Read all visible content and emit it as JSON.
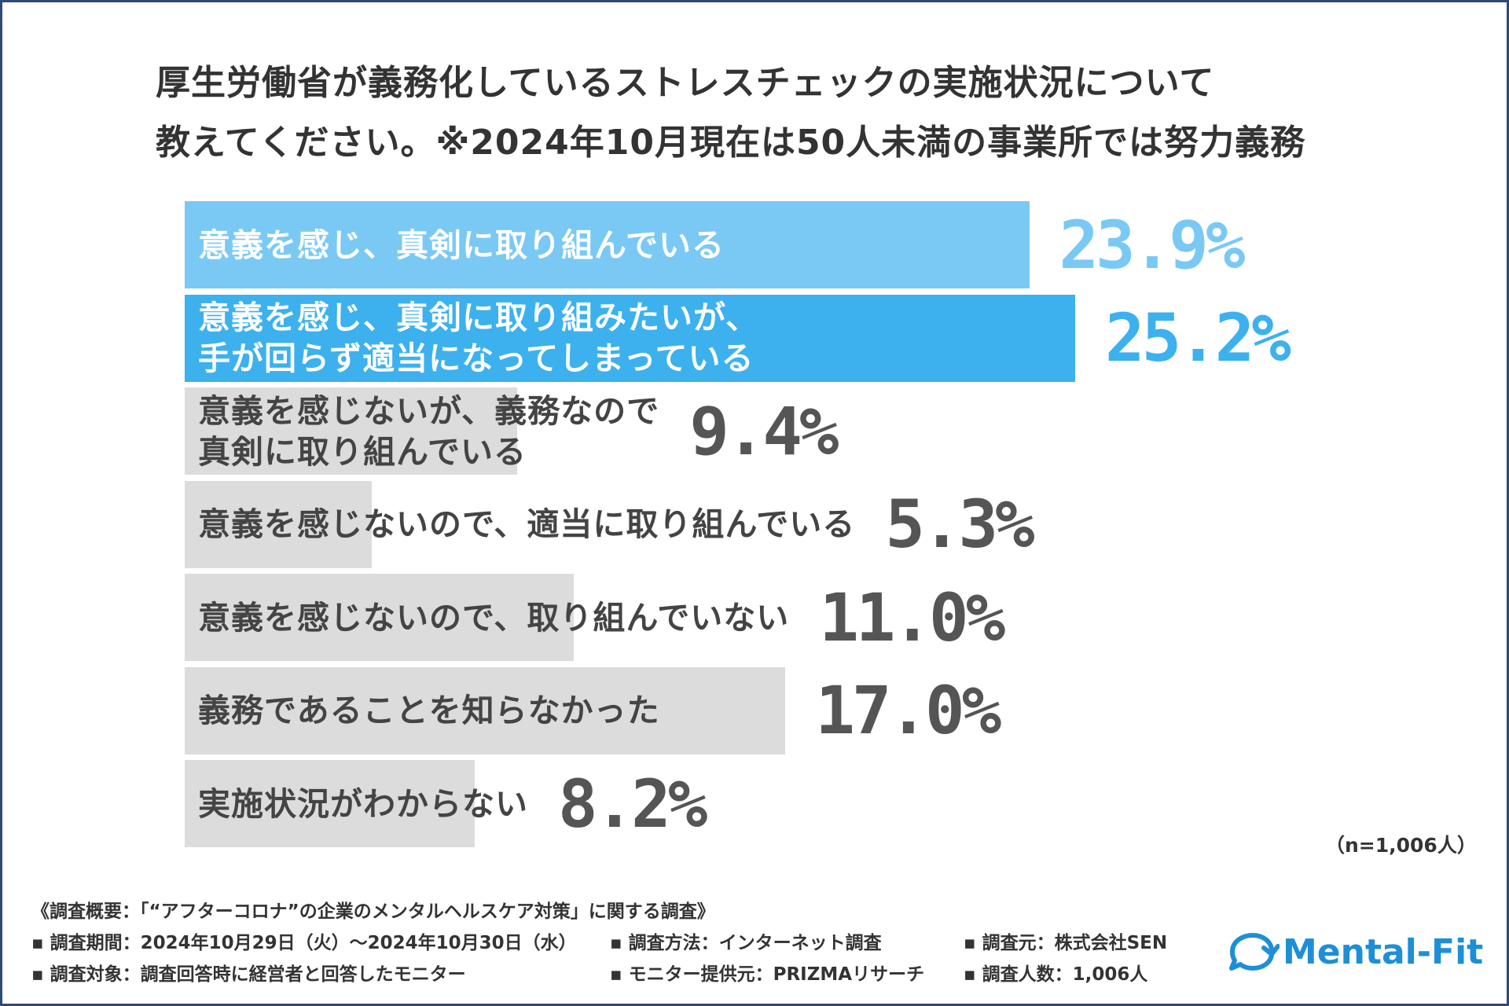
{
  "title": {
    "line1": "厚生労働省が義務化しているストレスチェックの実施状況について",
    "line2": "教えてください。※2024年10月現在は50人未満の事業所では努力義務"
  },
  "chart_data": {
    "type": "bar",
    "orientation": "horizontal",
    "unit": "%",
    "categories": [
      "意義を感じ、真剣に取り組んでいる",
      "意義を感じ、真剣に取り組みたいが、手が回らず適当になってしまっている",
      "意義を感じないが、義務なので真剣に取り組んでいる",
      "意義を感じないので、適当に取り組んでいる",
      "意義を感じないので、取り組んでいない",
      "義務であることを知らなかった",
      "実施状況がわからない"
    ],
    "label_lines": [
      [
        "意義を感じ、真剣に取り組んでいる"
      ],
      [
        "意義を感じ、真剣に取り組みたいが、",
        "手が回らず適当になってしまっている"
      ],
      [
        "意義を感じないが、義務なので",
        "真剣に取り組んでいる"
      ],
      [
        "意義を感じないので、適当に取り組んでいる"
      ],
      [
        "意義を感じないので、取り組んでいない"
      ],
      [
        "義務であることを知らなかった"
      ],
      [
        "実施状況がわからない"
      ]
    ],
    "values": [
      23.9,
      25.2,
      9.4,
      5.3,
      11.0,
      17.0,
      8.2
    ],
    "value_labels": [
      "23.9%",
      "25.2%",
      "9.4%",
      "5.3%",
      "11.0%",
      "17.0%",
      "8.2%"
    ],
    "bar_colors": [
      "#7ac9f4",
      "#3cb1ee",
      "#dcdcdc",
      "#dcdcdc",
      "#dcdcdc",
      "#dcdcdc",
      "#dcdcdc"
    ],
    "value_colors": [
      "#7ac9f4",
      "#3cb1ee",
      "#555555",
      "#555555",
      "#555555",
      "#555555",
      "#555555"
    ],
    "label_colors": [
      "#ffffff",
      "#ffffff",
      "#444444",
      "#444444",
      "#444444",
      "#444444",
      "#444444"
    ],
    "xlim": [
      0,
      25.2
    ]
  },
  "sample_size": "（n=1,006人）",
  "footer": {
    "heading": "《調査概要：「“アフターコロナ”の企業のメンタルヘルスケア対策」に関する調査》",
    "period": "▪ 調査期間：2024年10月29日（火）～2024年10月30日（水）",
    "method": "▪ 調査方法：インターネット調査",
    "source": "▪ 調査元：株式会社SEN",
    "target": "▪ 調査対象：調査回答時に経営者と回答したモニター",
    "provider": "▪ モニター提供元：PRIZMAリサーチ",
    "count": "▪ 調査人数：1,006人"
  },
  "logo": {
    "text": "Mental-Fit",
    "color": "#1e8fd6",
    "icon": "speech-bubble-refresh-icon"
  }
}
